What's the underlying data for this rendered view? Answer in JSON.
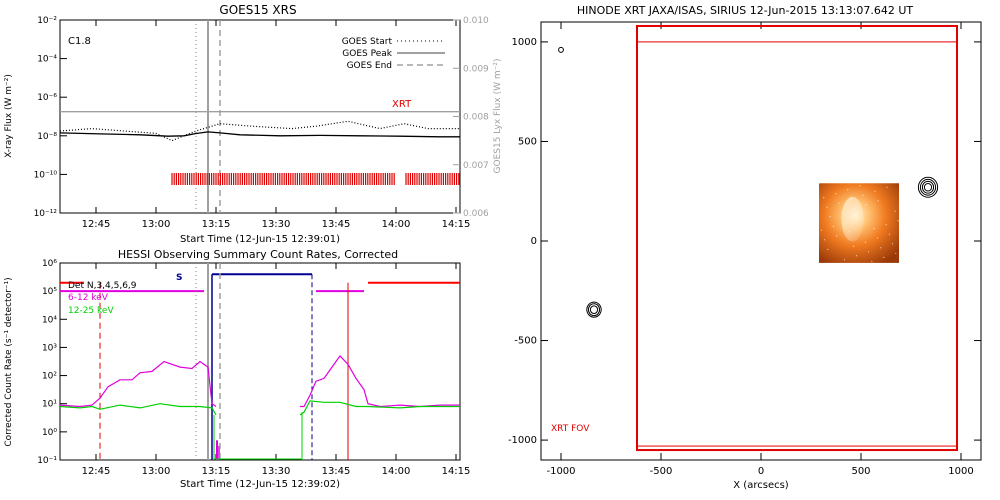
{
  "chart_data": [
    {
      "id": "goes",
      "type": "line",
      "title": "GOES15 XRS",
      "xlabel": "Start Time (12-Jun-15 12:39:01)",
      "ylabel": "X-ray Flux (W m⁻²)",
      "ylabel_right": "GOES15 Lyx Flux (W m⁻²)",
      "xlim": [
        "12:36",
        "14:16"
      ],
      "x_ticks": [
        "12:45",
        "13:00",
        "13:15",
        "13:30",
        "13:45",
        "14:00",
        "14:15"
      ],
      "ylim_log10": [
        -12,
        -2
      ],
      "y_ticks": [
        "10⁻¹²",
        "10⁻¹⁰",
        "10⁻⁸",
        "10⁻⁶",
        "10⁻⁴",
        "10⁻²"
      ],
      "y_ticks_right": [
        "0.006",
        "0.007",
        "0.008",
        "0.009",
        "0.010"
      ],
      "ylim_right": [
        0.006,
        0.01
      ],
      "class_label": "C1.8",
      "legend": [
        "GOES Start",
        "GOES Peak",
        "GOES End"
      ],
      "legend_position": "top-right",
      "xrt_label": "XRT",
      "markers": {
        "start": "13:10",
        "peak": "13:13",
        "end": "13:16"
      },
      "series": [
        {
          "color": "#000000",
          "style": "solid",
          "log10_flux": [
            [
              0,
              -7.85
            ],
            [
              10,
              -7.9
            ],
            [
              20,
              -7.95
            ],
            [
              27,
              -8.02
            ],
            [
              31,
              -8.0
            ],
            [
              34,
              -7.88
            ],
            [
              37,
              -7.8
            ],
            [
              40,
              -7.85
            ],
            [
              45,
              -7.95
            ],
            [
              55,
              -8.0
            ],
            [
              65,
              -7.98
            ],
            [
              75,
              -8.0
            ],
            [
              85,
              -8.02
            ],
            [
              95,
              -8.05
            ],
            [
              100,
              -8.05
            ]
          ]
        },
        {
          "color": "#a0a0a0",
          "style": "solid",
          "lya_flux": [
            [
              0,
              0.0081
            ],
            [
              30,
              0.0081
            ],
            [
              60,
              0.0081
            ],
            [
              100,
              0.0081
            ]
          ]
        },
        {
          "color": "#000000",
          "style": "dotted",
          "lya_flux": [
            [
              0,
              0.0077
            ],
            [
              8,
              0.00775
            ],
            [
              16,
              0.0077
            ],
            [
              24,
              0.00765
            ],
            [
              28,
              0.0075
            ],
            [
              34,
              0.0077
            ],
            [
              40,
              0.00785
            ],
            [
              48,
              0.0078
            ],
            [
              58,
              0.00775
            ],
            [
              64,
              0.0078
            ],
            [
              72,
              0.0079
            ],
            [
              80,
              0.00775
            ],
            [
              86,
              0.00785
            ],
            [
              92,
              0.00775
            ],
            [
              100,
              0.00775
            ]
          ]
        }
      ],
      "xrt_coverage": [
        [
          28,
          84
        ],
        [
          86.5,
          100
        ]
      ]
    },
    {
      "id": "hessi",
      "type": "line",
      "title": "HESSI Observing Summary Count Rates, Corrected",
      "xlabel": "Start Time (12-Jun-15 12:39:02)",
      "ylabel": "Corrected Count Rate (s⁻¹ detector⁻¹)",
      "xlim": [
        "12:36",
        "14:16"
      ],
      "x_ticks": [
        "12:45",
        "13:00",
        "13:15",
        "13:30",
        "13:45",
        "14:00",
        "14:15"
      ],
      "ylim_log10": [
        -1,
        6
      ],
      "y_ticks": [
        "10⁻¹",
        "10⁰",
        "10¹",
        "10²",
        "10³",
        "10⁴",
        "10⁵",
        "10⁶"
      ],
      "legend": [
        {
          "label": "Det N,3,4,5,6,9",
          "color": "#000000"
        },
        {
          "label": "6-12 keV",
          "color": "#e000e0"
        },
        {
          "label": "12-25 keV",
          "color": "#00d000"
        }
      ],
      "legend_position": "top-left",
      "saa_label": "S",
      "red_state_lines": [
        "12:46",
        "13:48"
      ],
      "markers": {
        "start": "13:10",
        "peak": "13:13",
        "end": "13:16"
      },
      "series": [
        {
          "name": "6-12 keV",
          "color": "#e000e0",
          "log10_rate": [
            [
              0,
              0.95
            ],
            [
              5,
              0.9
            ],
            [
              8,
              0.95
            ],
            [
              10,
              1.2
            ],
            [
              12,
              1.6
            ],
            [
              15,
              1.85
            ],
            [
              18,
              1.85
            ],
            [
              20,
              2.1
            ],
            [
              23,
              2.15
            ],
            [
              26,
              2.5
            ],
            [
              30,
              2.3
            ],
            [
              33,
              2.25
            ],
            [
              35,
              2.5
            ],
            [
              37,
              2.3
            ],
            [
              38,
              1.0
            ],
            [
              39,
              0.9
            ],
            [
              60,
              0.9
            ],
            [
              61,
              0.9
            ],
            [
              62.5,
              1.3
            ],
            [
              64,
              1.8
            ],
            [
              66,
              1.9
            ],
            [
              68,
              2.3
            ],
            [
              70,
              2.7
            ],
            [
              72,
              2.4
            ],
            [
              74,
              1.9
            ],
            [
              76,
              1.5
            ],
            [
              77,
              1.0
            ],
            [
              80,
              0.9
            ],
            [
              85,
              0.95
            ],
            [
              90,
              0.9
            ],
            [
              95,
              0.95
            ],
            [
              100,
              0.95
            ]
          ]
        },
        {
          "name": "12-25 keV",
          "color": "#00d000",
          "log10_rate": [
            [
              0,
              0.9
            ],
            [
              5,
              0.85
            ],
            [
              8,
              0.9
            ],
            [
              10,
              0.8
            ],
            [
              15,
              0.95
            ],
            [
              20,
              0.85
            ],
            [
              25,
              1.0
            ],
            [
              30,
              0.9
            ],
            [
              35,
              0.9
            ],
            [
              38,
              0.85
            ],
            [
              39,
              0.6
            ],
            [
              60,
              0.6
            ],
            [
              61,
              0.7
            ],
            [
              62.5,
              1.1
            ],
            [
              66,
              1.05
            ],
            [
              70,
              1.05
            ],
            [
              74,
              0.9
            ],
            [
              77,
              0.9
            ],
            [
              85,
              0.85
            ],
            [
              90,
              0.9
            ],
            [
              100,
              0.9
            ]
          ]
        }
      ],
      "state_bars": [
        {
          "color": "#e000e0",
          "from": 0,
          "to": 36,
          "log10_level": 5.0
        },
        {
          "color": "#e000e0",
          "from": 64,
          "to": 76,
          "log10_level": 5.0
        },
        {
          "color": "#000090",
          "from": 38,
          "to": 63,
          "log10_level": 5.6
        },
        {
          "color": "#ff0000",
          "from": 77,
          "to": 100,
          "log10_level": 5.3
        },
        {
          "color": "#ff0000",
          "from": 0,
          "to": 6,
          "log10_level": 5.3
        }
      ]
    },
    {
      "id": "hinode",
      "type": "scatter",
      "title": "HINODE XRT JAXA/ISAS, SIRIUS 12-Jun-2015 13:13:07.642 UT",
      "xlabel": "X (arcsecs)",
      "ylabel": "",
      "xlim": [
        -1100,
        1100
      ],
      "ylim": [
        -1100,
        1100
      ],
      "x_ticks": [
        -1000,
        -500,
        0,
        500,
        1000
      ],
      "y_ticks": [
        -1000,
        -500,
        0,
        500,
        1000
      ],
      "fov_label": "XRT FOV",
      "fov_outer": {
        "x": [
          -620,
          980
        ],
        "y": [
          -1050,
          1080
        ]
      },
      "fov_inner": {
        "x": [
          -620,
          980
        ],
        "y": [
          -1030,
          1000
        ]
      },
      "image_region": {
        "x": [
          290,
          690
        ],
        "y": [
          -110,
          290
        ]
      },
      "contours": [
        {
          "x": -1000,
          "y": 960,
          "r": [
            12
          ]
        },
        {
          "x": -835,
          "y": -345,
          "r": [
            18,
            28,
            36
          ]
        },
        {
          "x": 835,
          "y": 270,
          "r": [
            18,
            28,
            38,
            48
          ]
        }
      ]
    }
  ]
}
